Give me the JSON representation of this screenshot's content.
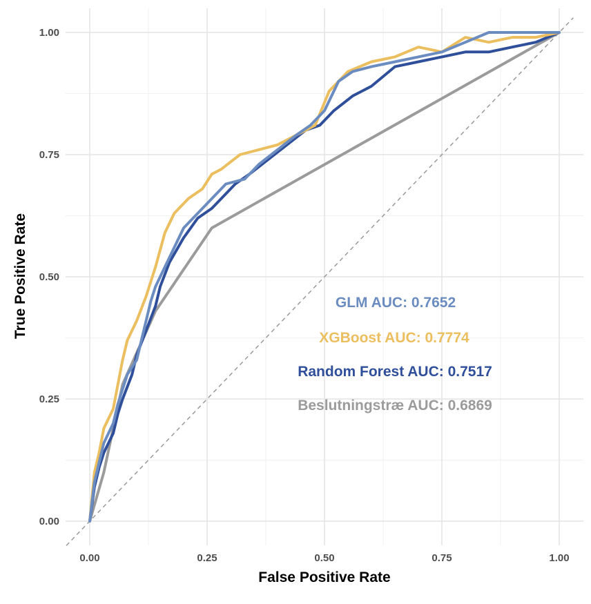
{
  "chart_data": {
    "type": "line",
    "title": "",
    "xlabel": "False Positive Rate",
    "ylabel": "True Positive Rate",
    "xlim": [
      0,
      1
    ],
    "ylim": [
      0,
      1
    ],
    "x_ticks": [
      0,
      0.25,
      0.5,
      0.75,
      1
    ],
    "y_ticks": [
      0,
      0.25,
      0.5,
      0.75,
      1
    ],
    "x_tick_labels": [
      "0.00",
      "0.25",
      "0.50",
      "0.75",
      "1.00"
    ],
    "y_tick_labels": [
      "0.00",
      "0.25",
      "0.50",
      "0.75",
      "1.00"
    ],
    "grid": true,
    "legend_position": "center-right",
    "reference_line": {
      "style": "dashed",
      "color": "#999999",
      "from": [
        0,
        0
      ],
      "to": [
        1,
        1
      ]
    },
    "series": [
      {
        "name": "GLM",
        "label": "GLM AUC: 0.7652",
        "auc": 0.7652,
        "color": "#6b8cc0",
        "points": [
          [
            0,
            0
          ],
          [
            0.01,
            0.08
          ],
          [
            0.02,
            0.12
          ],
          [
            0.03,
            0.16
          ],
          [
            0.05,
            0.2
          ],
          [
            0.06,
            0.24
          ],
          [
            0.07,
            0.27
          ],
          [
            0.08,
            0.3
          ],
          [
            0.1,
            0.33
          ],
          [
            0.11,
            0.37
          ],
          [
            0.12,
            0.41
          ],
          [
            0.13,
            0.45
          ],
          [
            0.14,
            0.48
          ],
          [
            0.16,
            0.52
          ],
          [
            0.18,
            0.56
          ],
          [
            0.2,
            0.6
          ],
          [
            0.23,
            0.63
          ],
          [
            0.26,
            0.66
          ],
          [
            0.29,
            0.69
          ],
          [
            0.33,
            0.7
          ],
          [
            0.36,
            0.73
          ],
          [
            0.4,
            0.76
          ],
          [
            0.44,
            0.79
          ],
          [
            0.47,
            0.81
          ],
          [
            0.5,
            0.84
          ],
          [
            0.53,
            0.9
          ],
          [
            0.56,
            0.92
          ],
          [
            0.6,
            0.93
          ],
          [
            0.65,
            0.94
          ],
          [
            0.7,
            0.95
          ],
          [
            0.75,
            0.96
          ],
          [
            0.8,
            0.98
          ],
          [
            0.85,
            1
          ],
          [
            0.9,
            1
          ],
          [
            0.95,
            1
          ],
          [
            1,
            1
          ]
        ]
      },
      {
        "name": "XGBoost",
        "label": "XGBoost AUC: 0.7774",
        "auc": 0.7774,
        "color": "#ebbf5f",
        "points": [
          [
            0,
            0
          ],
          [
            0.01,
            0.1
          ],
          [
            0.02,
            0.14
          ],
          [
            0.03,
            0.19
          ],
          [
            0.05,
            0.23
          ],
          [
            0.06,
            0.28
          ],
          [
            0.07,
            0.33
          ],
          [
            0.08,
            0.37
          ],
          [
            0.1,
            0.41
          ],
          [
            0.12,
            0.46
          ],
          [
            0.14,
            0.52
          ],
          [
            0.16,
            0.59
          ],
          [
            0.18,
            0.63
          ],
          [
            0.21,
            0.66
          ],
          [
            0.24,
            0.68
          ],
          [
            0.26,
            0.71
          ],
          [
            0.28,
            0.72
          ],
          [
            0.32,
            0.75
          ],
          [
            0.36,
            0.76
          ],
          [
            0.4,
            0.77
          ],
          [
            0.44,
            0.79
          ],
          [
            0.48,
            0.81
          ],
          [
            0.51,
            0.88
          ],
          [
            0.55,
            0.92
          ],
          [
            0.6,
            0.94
          ],
          [
            0.65,
            0.95
          ],
          [
            0.7,
            0.97
          ],
          [
            0.75,
            0.96
          ],
          [
            0.8,
            0.99
          ],
          [
            0.85,
            0.98
          ],
          [
            0.9,
            0.99
          ],
          [
            0.95,
            0.99
          ],
          [
            1,
            1
          ]
        ]
      },
      {
        "name": "Random Forest",
        "label": "Random Forest AUC: 0.7517",
        "auc": 0.7517,
        "color": "#2f4f9b",
        "points": [
          [
            0,
            0
          ],
          [
            0.01,
            0.07
          ],
          [
            0.02,
            0.11
          ],
          [
            0.03,
            0.14
          ],
          [
            0.05,
            0.18
          ],
          [
            0.06,
            0.22
          ],
          [
            0.07,
            0.25
          ],
          [
            0.09,
            0.3
          ],
          [
            0.1,
            0.34
          ],
          [
            0.12,
            0.39
          ],
          [
            0.14,
            0.44
          ],
          [
            0.15,
            0.48
          ],
          [
            0.17,
            0.53
          ],
          [
            0.2,
            0.58
          ],
          [
            0.23,
            0.62
          ],
          [
            0.26,
            0.64
          ],
          [
            0.28,
            0.66
          ],
          [
            0.31,
            0.69
          ],
          [
            0.34,
            0.71
          ],
          [
            0.38,
            0.74
          ],
          [
            0.42,
            0.77
          ],
          [
            0.46,
            0.8
          ],
          [
            0.49,
            0.81
          ],
          [
            0.52,
            0.84
          ],
          [
            0.56,
            0.87
          ],
          [
            0.6,
            0.89
          ],
          [
            0.65,
            0.93
          ],
          [
            0.7,
            0.94
          ],
          [
            0.75,
            0.95
          ],
          [
            0.8,
            0.96
          ],
          [
            0.85,
            0.96
          ],
          [
            0.9,
            0.97
          ],
          [
            0.95,
            0.98
          ],
          [
            1,
            1
          ]
        ]
      },
      {
        "name": "Beslutningstræ",
        "label": "Beslutningstræ AUC: 0.6869",
        "auc": 0.6869,
        "color": "#9b9b9b",
        "points": [
          [
            0,
            0
          ],
          [
            0.03,
            0.1
          ],
          [
            0.07,
            0.28
          ],
          [
            0.14,
            0.43
          ],
          [
            0.26,
            0.6
          ],
          [
            1,
            1
          ]
        ]
      }
    ]
  }
}
